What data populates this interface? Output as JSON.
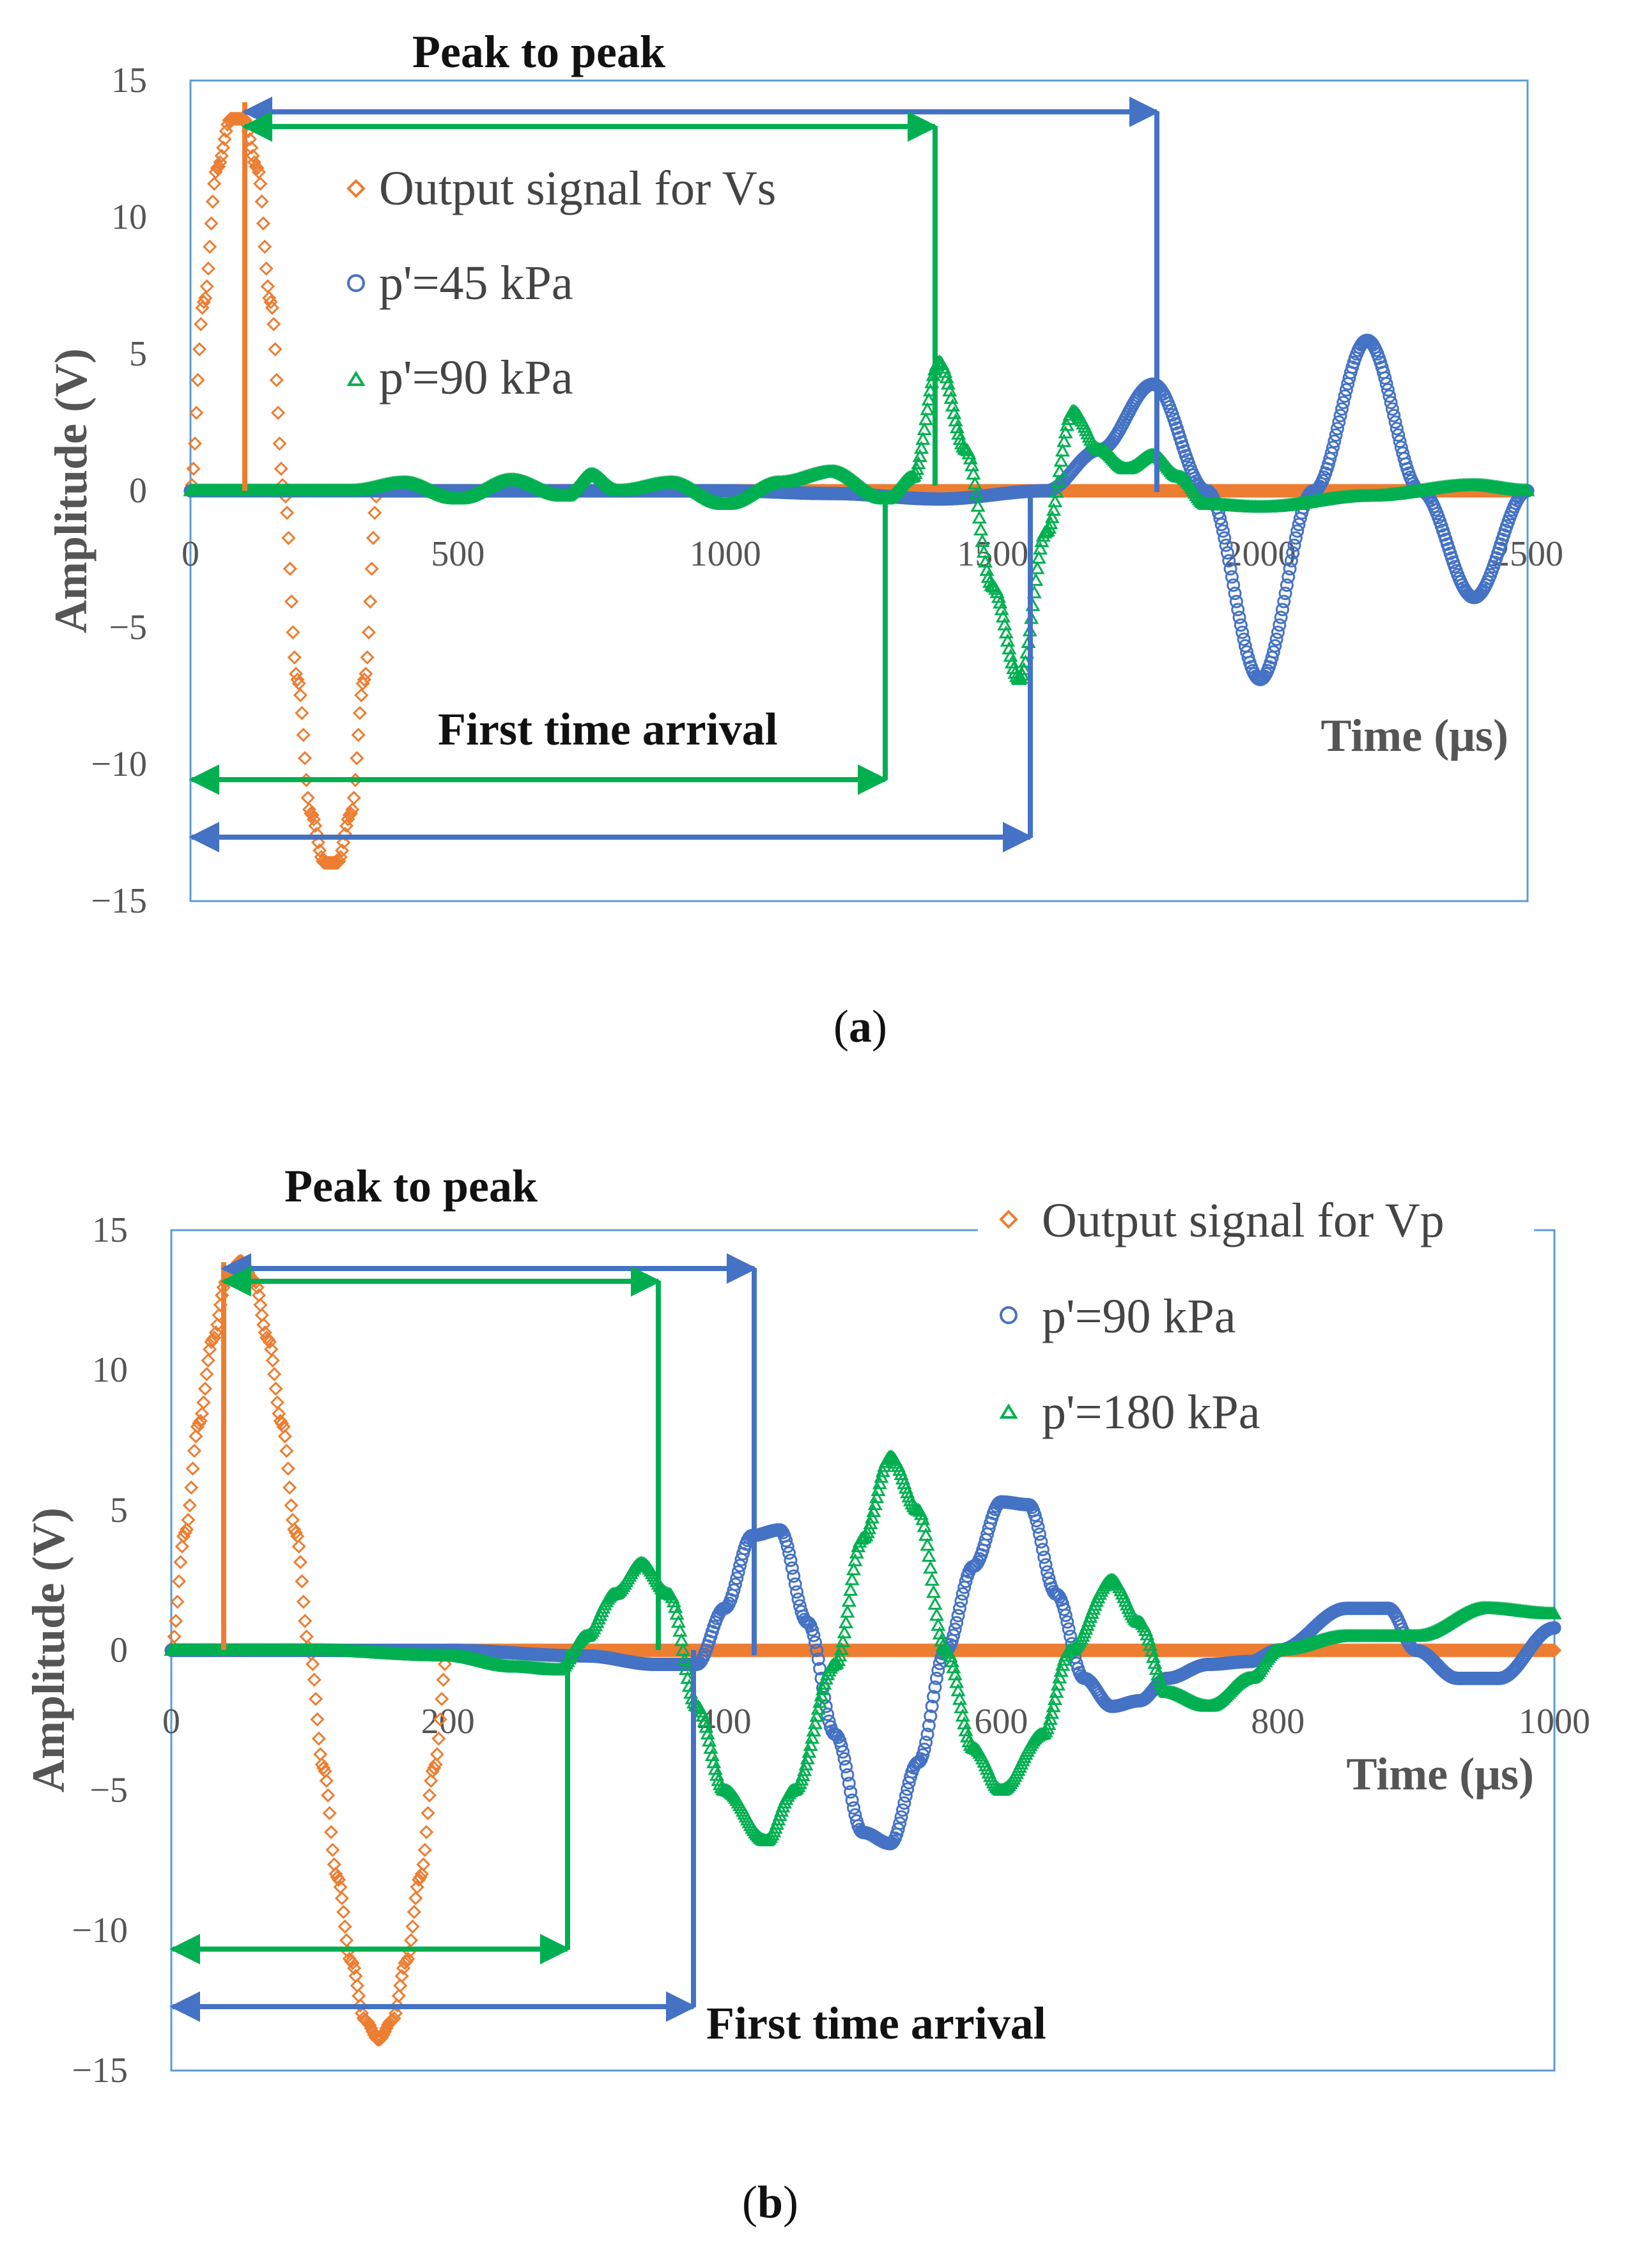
{
  "chart_data": [
    {
      "id": "a",
      "type": "scatter",
      "caption_letter": "a",
      "xlabel": "Time (μs)",
      "ylabel": "Amplitude (V)",
      "xlim": [
        0,
        2500
      ],
      "ylim": [
        -15,
        15
      ],
      "xticks": [
        0,
        500,
        1000,
        1500,
        2000,
        2500
      ],
      "yticks": [
        15,
        10,
        5,
        0,
        -5,
        -10,
        -15
      ],
      "annotations": {
        "peak_to_peak": "Peak to peak",
        "first_arrival": "First time arrival"
      },
      "series": [
        {
          "name": "Output signal for Vs",
          "marker": "diamond",
          "color": "#ED7D31",
          "x": [
            0,
            25,
            50,
            75,
            100,
            125,
            150,
            175,
            200,
            225,
            250,
            275,
            300,
            325,
            350,
            375,
            400,
            450,
            500,
            750,
            1000,
            1500,
            2000,
            2500
          ],
          "y": [
            0,
            6.9,
            11.8,
            13.6,
            13.6,
            11.8,
            6.9,
            0,
            -6.9,
            -11.8,
            -13.6,
            -13.6,
            -11.8,
            -6.9,
            0,
            0,
            0,
            0,
            0,
            0,
            0,
            0,
            0,
            0
          ]
        },
        {
          "name": "p'=45 kPa",
          "marker": "circle",
          "color": "#4472C4",
          "x": [
            0,
            500,
            1000,
            1200,
            1400,
            1600,
            1700,
            1800,
            1900,
            2000,
            2100,
            2200,
            2300,
            2400,
            2500
          ],
          "y": [
            0,
            0,
            0,
            -0.1,
            -0.3,
            0,
            1.5,
            3.9,
            0,
            -6.9,
            0,
            5.5,
            0,
            -3.9,
            0
          ]
        },
        {
          "name": "p'=90 kPa",
          "marker": "triangle",
          "color": "#00B050",
          "x": [
            0,
            300,
            400,
            500,
            600,
            700,
            750,
            800,
            900,
            1000,
            1100,
            1200,
            1300,
            1350,
            1400,
            1450,
            1500,
            1550,
            1600,
            1650,
            1700,
            1750,
            1800,
            1850,
            1900,
            2000,
            2200,
            2400,
            2500
          ],
          "y": [
            0,
            0,
            0.3,
            -0.3,
            0.4,
            -0.2,
            0.6,
            0,
            0.3,
            -0.5,
            0.3,
            0.7,
            -0.3,
            0.5,
            4.7,
            1.5,
            -3.5,
            -6.9,
            -1.5,
            2.9,
            1.5,
            0.8,
            1.3,
            0.5,
            -0.5,
            -0.6,
            -0.2,
            0.2,
            0
          ]
        }
      ]
    },
    {
      "id": "b",
      "type": "scatter",
      "caption_letter": "b",
      "xlabel": "Time (μs)",
      "ylabel": "Amplitude (V)",
      "xlim": [
        0,
        1000
      ],
      "ylim": [
        -15,
        15
      ],
      "xticks": [
        0,
        200,
        400,
        600,
        800,
        1000
      ],
      "yticks": [
        15,
        10,
        5,
        0,
        -5,
        -10,
        -15
      ],
      "annotations": {
        "peak_to_peak": "Peak to peak",
        "first_arrival": "First time arrival"
      },
      "series": [
        {
          "name": "Output signal for Vp",
          "marker": "diamond",
          "color": "#ED7D31",
          "x": [
            0,
            10,
            20,
            30,
            40,
            50,
            60,
            70,
            80,
            90,
            100,
            110,
            120,
            130,
            140,
            150,
            160,
            170,
            180,
            190,
            200,
            300,
            500,
            700,
            1000
          ],
          "y": [
            0,
            4.2,
            8.1,
            11.1,
            13.2,
            13.9,
            13.2,
            11.1,
            8.1,
            4.2,
            0,
            -4.2,
            -8.1,
            -11.1,
            -13.2,
            -13.9,
            -13.2,
            -11.1,
            -8.1,
            -4.2,
            0,
            0,
            0,
            0,
            0
          ]
        },
        {
          "name": "p'=90 kPa",
          "marker": "circle",
          "color": "#4472C4",
          "x": [
            0,
            200,
            300,
            350,
            380,
            400,
            420,
            440,
            460,
            480,
            500,
            520,
            540,
            560,
            580,
            600,
            620,
            640,
            660,
            680,
            700,
            720,
            750,
            780,
            800,
            850,
            880,
            900,
            930,
            960,
            1000
          ],
          "y": [
            0,
            0,
            -0.2,
            -0.5,
            -0.5,
            1.5,
            4.1,
            4.3,
            1,
            -3,
            -6.5,
            -6.9,
            -4,
            0,
            3,
            5.3,
            5.2,
            2,
            -1,
            -2,
            -1.8,
            -1,
            -0.5,
            -0.4,
            0,
            1.5,
            1.5,
            0,
            -1,
            -1,
            0.8
          ]
        },
        {
          "name": "p'=180 kPa",
          "marker": "triangle",
          "color": "#00B050",
          "x": [
            0,
            100,
            200,
            250,
            280,
            300,
            320,
            340,
            360,
            380,
            400,
            430,
            450,
            480,
            500,
            520,
            540,
            560,
            580,
            600,
            630,
            650,
            680,
            700,
            720,
            750,
            780,
            800,
            850,
            900,
            950,
            1000
          ],
          "y": [
            0,
            0,
            -0.2,
            -0.6,
            -0.7,
            0.5,
            2,
            3.1,
            2,
            -2,
            -5,
            -6.8,
            -5,
            -0.5,
            4,
            6.9,
            5,
            0,
            -3.5,
            -5,
            -3,
            0,
            2.5,
            1,
            -1.5,
            -2,
            -1,
            0,
            0.5,
            0.5,
            1.5,
            1.3
          ]
        }
      ]
    }
  ]
}
